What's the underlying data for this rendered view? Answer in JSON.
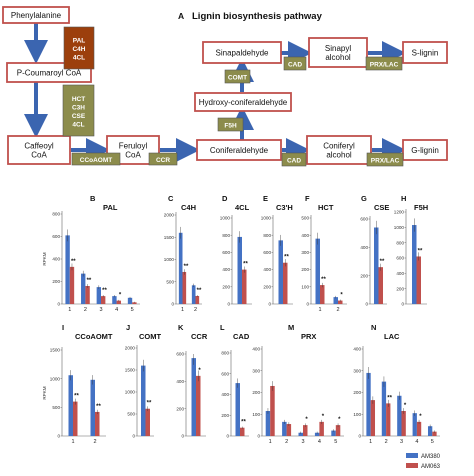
{
  "panel_a": {
    "letter": "A",
    "title": "Lignin biosynthesis pathway",
    "metabolites": [
      {
        "id": "phenylalanine",
        "label": "Phenylalanine"
      },
      {
        "id": "p-coumaroyl-coa",
        "label": "P-Coumaroyl CoA"
      },
      {
        "id": "caffeoyl-coa",
        "label": "Caffeoyl\nCoA"
      },
      {
        "id": "feruloyl-coa",
        "label": "Feruloyl\nCoA"
      },
      {
        "id": "coniferaldehyde",
        "label": "Coniferaldehyde"
      },
      {
        "id": "hydroxy-coniferaldehyde",
        "label": "Hydroxy-coniferaldehyde"
      },
      {
        "id": "sinapaldehyde",
        "label": "Sinapaldehyde"
      },
      {
        "id": "sinapyl-alcohol",
        "label": "Sinapyl\nalcohol"
      },
      {
        "id": "s-lignin",
        "label": "S-lignin"
      },
      {
        "id": "coniferyl-alcohol",
        "label": "Coniferyl\nalcohol"
      },
      {
        "id": "g-lignin",
        "label": "G-lignin"
      }
    ],
    "enzymes": [
      {
        "id": "pal-c4h-4cl",
        "label": "PAL\nC4H\n4CL",
        "color": "#9c3f0c"
      },
      {
        "id": "hct-c3h-cse-4cl",
        "label": "HCT\nC3H\nCSE\n4CL",
        "color": "#8c8c4c"
      },
      {
        "id": "ccoaomt",
        "label": "CCoAOMT",
        "color": "#8c8c4c"
      },
      {
        "id": "ccr",
        "label": "CCR",
        "color": "#8c8c4c"
      },
      {
        "id": "f5h",
        "label": "F5H",
        "color": "#8c8c4c"
      },
      {
        "id": "comt",
        "label": "COMT",
        "color": "#8c8c4c"
      },
      {
        "id": "cad-top",
        "label": "CAD",
        "color": "#8c8c4c"
      },
      {
        "id": "prxlac-top",
        "label": "PRX/LAC",
        "color": "#8c8c4c"
      },
      {
        "id": "cad-bottom",
        "label": "CAD",
        "color": "#8c8c4c"
      },
      {
        "id": "prxlac-bottom",
        "label": "PRX/LAC",
        "color": "#8c8c4c"
      }
    ]
  },
  "colors": {
    "am380": "#4472c4",
    "am063": "#c0504d",
    "node_border": "#c0504d",
    "arrow": "#3b65b0"
  },
  "legend": [
    {
      "name": "AM380",
      "color": "#4472c4"
    },
    {
      "name": "AM063",
      "color": "#c0504d"
    }
  ],
  "chart_data": [
    {
      "type": "bar",
      "letter": "B",
      "title": "PAL",
      "ylabel": "RPKM",
      "ylim": [
        0,
        800
      ],
      "yticks": [
        0,
        200,
        400,
        600,
        800
      ],
      "categories": [
        "1",
        "2",
        "3",
        "4",
        "5"
      ],
      "series": [
        {
          "name": "AM380",
          "values": [
            610,
            270,
            150,
            70,
            55
          ]
        },
        {
          "name": "AM063",
          "values": [
            330,
            160,
            70,
            30,
            15
          ]
        }
      ],
      "sig": [
        "**",
        "**",
        "**",
        "*",
        ""
      ]
    },
    {
      "type": "bar",
      "letter": "C",
      "title": "C4H",
      "ylabel": "",
      "ylim": [
        0,
        2000
      ],
      "yticks": [
        0,
        500,
        1000,
        1500,
        2000
      ],
      "categories": [
        "1",
        "2"
      ],
      "series": [
        {
          "name": "AM380",
          "values": [
            1600,
            420
          ]
        },
        {
          "name": "AM063",
          "values": [
            720,
            180
          ]
        }
      ],
      "sig": [
        "**",
        "**"
      ]
    },
    {
      "type": "bar",
      "letter": "D",
      "title": "4CL",
      "ylabel": "",
      "ylim": [
        0,
        1000
      ],
      "yticks": [
        0,
        200,
        400,
        600,
        800,
        1000
      ],
      "categories": [
        ""
      ],
      "series": [
        {
          "name": "AM380",
          "values": [
            780
          ]
        },
        {
          "name": "AM063",
          "values": [
            400
          ]
        }
      ],
      "sig": [
        "**"
      ]
    },
    {
      "type": "bar",
      "letter": "E",
      "title": "C3'H",
      "ylabel": "",
      "ylim": [
        0,
        1000
      ],
      "yticks": [
        0,
        200,
        400,
        600,
        800,
        1000
      ],
      "categories": [
        ""
      ],
      "series": [
        {
          "name": "AM380",
          "values": [
            740
          ]
        },
        {
          "name": "AM063",
          "values": [
            480
          ]
        }
      ],
      "sig": [
        "**"
      ]
    },
    {
      "type": "bar",
      "letter": "F",
      "title": "HCT",
      "ylabel": "",
      "ylim": [
        0,
        500
      ],
      "yticks": [
        0,
        100,
        200,
        300,
        400,
        500
      ],
      "categories": [
        "1",
        "2"
      ],
      "series": [
        {
          "name": "AM380",
          "values": [
            380,
            40
          ]
        },
        {
          "name": "AM063",
          "values": [
            110,
            20
          ]
        }
      ],
      "sig": [
        "**",
        "*"
      ]
    },
    {
      "type": "bar",
      "letter": "G",
      "title": "CSE",
      "ylabel": "",
      "ylim": [
        0,
        600
      ],
      "yticks": [
        0,
        200,
        400,
        600
      ],
      "categories": [
        ""
      ],
      "series": [
        {
          "name": "AM380",
          "values": [
            540
          ]
        },
        {
          "name": "AM063",
          "values": [
            260
          ]
        }
      ],
      "sig": [
        "**"
      ]
    },
    {
      "type": "bar",
      "letter": "H",
      "title": "F5H",
      "ylabel": "",
      "ylim": [
        0,
        1200
      ],
      "yticks": [
        0,
        200,
        400,
        600,
        800,
        1000,
        1200
      ],
      "categories": [
        ""
      ],
      "series": [
        {
          "name": "AM380",
          "values": [
            1030
          ]
        },
        {
          "name": "AM063",
          "values": [
            620
          ]
        }
      ],
      "sig": [
        "**"
      ]
    },
    {
      "type": "bar",
      "letter": "I",
      "title": "CCoAOMT",
      "ylabel": "RPKM",
      "ylim": [
        0,
        1500
      ],
      "yticks": [
        0,
        500,
        1000,
        1500
      ],
      "categories": [
        "1",
        "2"
      ],
      "series": [
        {
          "name": "AM380",
          "values": [
            1060,
            980
          ]
        },
        {
          "name": "AM063",
          "values": [
            600,
            420
          ]
        }
      ],
      "sig": [
        "**",
        "**"
      ]
    },
    {
      "type": "bar",
      "letter": "J",
      "title": "COMT",
      "ylabel": "",
      "ylim": [
        0,
        2000
      ],
      "yticks": [
        0,
        500,
        1000,
        1500,
        2000
      ],
      "categories": [
        ""
      ],
      "series": [
        {
          "name": "AM380",
          "values": [
            1600
          ]
        },
        {
          "name": "AM063",
          "values": [
            620
          ]
        }
      ],
      "sig": [
        "**"
      ]
    },
    {
      "type": "bar",
      "letter": "K",
      "title": "CCR",
      "ylabel": "",
      "ylim": [
        0,
        600
      ],
      "yticks": [
        0,
        200,
        400,
        600
      ],
      "categories": [
        ""
      ],
      "series": [
        {
          "name": "AM380",
          "values": [
            570
          ]
        },
        {
          "name": "AM063",
          "values": [
            440
          ]
        }
      ],
      "sig": [
        "*"
      ]
    },
    {
      "type": "bar",
      "letter": "L",
      "title": "CAD",
      "ylabel": "",
      "ylim": [
        0,
        800
      ],
      "yticks": [
        0,
        200,
        400,
        600,
        800
      ],
      "categories": [
        ""
      ],
      "series": [
        {
          "name": "AM380",
          "values": [
            510
          ]
        },
        {
          "name": "AM063",
          "values": [
            80
          ]
        }
      ],
      "sig": [
        "**"
      ]
    },
    {
      "type": "bar",
      "letter": "M",
      "title": "PRX",
      "ylabel": "",
      "ylim": [
        0,
        400
      ],
      "yticks": [
        0,
        100,
        200,
        300,
        400
      ],
      "categories": [
        "1",
        "2",
        "3",
        "4",
        "5"
      ],
      "series": [
        {
          "name": "AM380",
          "values": [
            115,
            65,
            15,
            15,
            25
          ]
        },
        {
          "name": "AM063",
          "values": [
            230,
            55,
            50,
            65,
            50
          ]
        }
      ],
      "sig": [
        "",
        "",
        "*",
        "*",
        "*"
      ]
    },
    {
      "type": "bar",
      "letter": "N",
      "title": "LAC",
      "ylabel": "",
      "ylim": [
        0,
        400
      ],
      "yticks": [
        0,
        100,
        200,
        300,
        400
      ],
      "categories": [
        "1",
        "2",
        "3",
        "4",
        "5"
      ],
      "series": [
        {
          "name": "AM380",
          "values": [
            290,
            250,
            185,
            105,
            45
          ]
        },
        {
          "name": "AM063",
          "values": [
            165,
            150,
            115,
            65,
            20
          ]
        }
      ],
      "sig": [
        "",
        "**",
        "*",
        "*",
        ""
      ]
    }
  ]
}
